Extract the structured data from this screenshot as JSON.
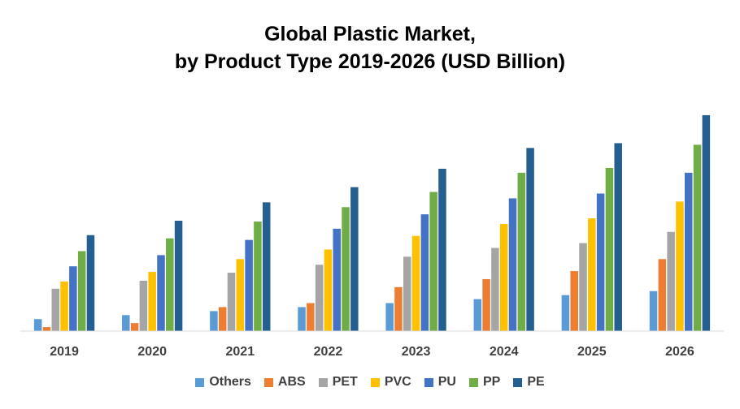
{
  "chart_data": {
    "type": "bar",
    "title_line1": "Global Plastic Market,",
    "title_line2": "by Product Type 2019-2026 (USD Billion)",
    "categories": [
      "2019",
      "2020",
      "2021",
      "2022",
      "2023",
      "2024",
      "2025",
      "2026"
    ],
    "ylim": [
      0,
      275
    ],
    "series": [
      {
        "name": "Others",
        "color": "#5B9BD5",
        "values": [
          15,
          20,
          25,
          30,
          35,
          40,
          45,
          50
        ]
      },
      {
        "name": "ABS",
        "color": "#ED7D31",
        "values": [
          5,
          10,
          30,
          35,
          55,
          65,
          75,
          90
        ]
      },
      {
        "name": "PET",
        "color": "#A5A5A5",
        "values": [
          53,
          63,
          73,
          83,
          93,
          104,
          110,
          124
        ]
      },
      {
        "name": "PVC",
        "color": "#FFC000",
        "values": [
          62,
          74,
          90,
          102,
          119,
          134,
          141,
          162
        ]
      },
      {
        "name": "PU",
        "color": "#4472C4",
        "values": [
          81,
          95,
          114,
          128,
          146,
          166,
          172,
          198
        ]
      },
      {
        "name": "PP",
        "color": "#70AD47",
        "values": [
          100,
          116,
          137,
          155,
          174,
          198,
          204,
          233
        ]
      },
      {
        "name": "PE",
        "color": "#255E91",
        "values": [
          120,
          138,
          161,
          180,
          203,
          229,
          235,
          270
        ]
      }
    ]
  }
}
